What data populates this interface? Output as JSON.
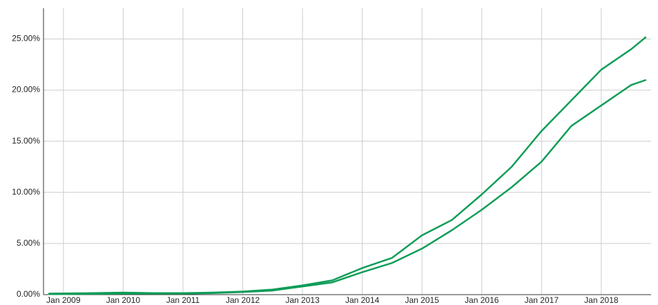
{
  "chart_data": {
    "type": "line",
    "x": [
      "2008-10",
      "2009-01",
      "2009-07",
      "2010-01",
      "2010-07",
      "2011-01",
      "2011-07",
      "2012-01",
      "2012-07",
      "2013-01",
      "2013-07",
      "2014-01",
      "2014-07",
      "2015-01",
      "2015-07",
      "2016-01",
      "2016-07",
      "2017-01",
      "2017-07",
      "2018-01",
      "2018-07",
      "2018-10"
    ],
    "series": [
      {
        "color": "#0f9d58",
        "values": [
          0.1,
          0.12,
          0.15,
          0.2,
          0.15,
          0.15,
          0.2,
          0.3,
          0.5,
          0.9,
          1.4,
          2.6,
          3.6,
          5.8,
          7.3,
          9.8,
          12.5,
          16.0,
          19.0,
          22.0,
          24.0,
          25.2
        ]
      },
      {
        "color": "#0f9d58",
        "values": [
          0.05,
          0.05,
          0.08,
          0.1,
          0.1,
          0.1,
          0.15,
          0.25,
          0.4,
          0.8,
          1.2,
          2.2,
          3.1,
          4.5,
          6.3,
          8.3,
          10.5,
          13.0,
          16.5,
          18.5,
          20.5,
          21.0
        ]
      }
    ],
    "xlim": [
      "2008-09",
      "2018-11"
    ],
    "xticks": [
      {
        "value": "2009-01",
        "label": "Jan 2009"
      },
      {
        "value": "2010-01",
        "label": "Jan 2010"
      },
      {
        "value": "2011-01",
        "label": "Jan 2011"
      },
      {
        "value": "2012-01",
        "label": "Jan 2012"
      },
      {
        "value": "2013-01",
        "label": "Jan 2013"
      },
      {
        "value": "2014-01",
        "label": "Jan 2014"
      },
      {
        "value": "2015-01",
        "label": "Jan 2015"
      },
      {
        "value": "2016-01",
        "label": "Jan 2016"
      },
      {
        "value": "2017-01",
        "label": "Jan 2017"
      },
      {
        "value": "2018-01",
        "label": "Jan 2018"
      }
    ],
    "ylim": [
      0,
      28
    ],
    "yticks": [
      {
        "value": 0,
        "label": "0.00%"
      },
      {
        "value": 5,
        "label": "5.00%"
      },
      {
        "value": 10,
        "label": "10.00%"
      },
      {
        "value": 15,
        "label": "15.00%"
      },
      {
        "value": 20,
        "label": "20.00%"
      },
      {
        "value": 25,
        "label": "25.00%"
      }
    ],
    "grid": true
  }
}
